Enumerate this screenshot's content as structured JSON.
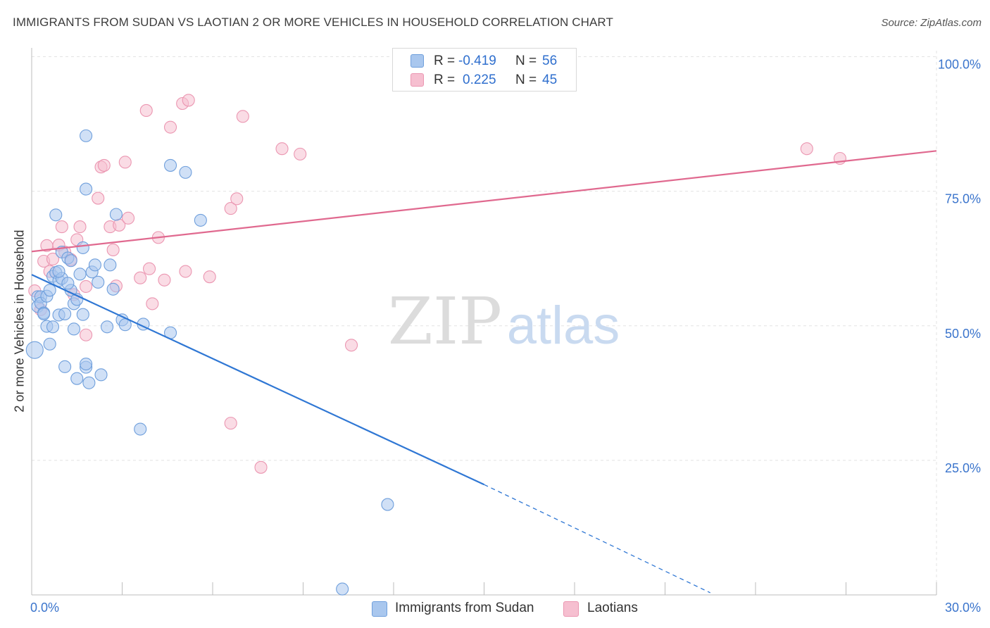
{
  "header": {
    "title": "IMMIGRANTS FROM SUDAN VS LAOTIAN 2 OR MORE VEHICLES IN HOUSEHOLD CORRELATION CHART",
    "source": "Source: ZipAtlas.com"
  },
  "watermark": {
    "zip": "ZIP",
    "atlas": "atlas"
  },
  "legend": {
    "r_label": "R =",
    "n_label": "N =",
    "series1": {
      "r": "-0.419",
      "n": "56"
    },
    "series2": {
      "r": "0.225",
      "n": "45"
    }
  },
  "colors": {
    "blue_fill": "#a9c7ee",
    "blue_stroke": "#6f9fdc",
    "blue_line": "#2f77d4",
    "pink_fill": "#f6bfd0",
    "pink_stroke": "#eb96b1",
    "pink_line": "#e0698f",
    "tick_label": "#3a74cc",
    "grid": "#e3e3e3"
  },
  "chart_data": {
    "type": "scatter",
    "title": "IMMIGRANTS FROM SUDAN VS LAOTIAN 2 OR MORE VEHICLES IN HOUSEHOLD CORRELATION CHART",
    "xlabel": "",
    "ylabel": "2 or more Vehicles in Household",
    "xlim": [
      0,
      30
    ],
    "ylim": [
      0,
      100
    ],
    "x_tick_labels": [
      "0.0%",
      "30.0%"
    ],
    "y_ticks": [
      25,
      50,
      75,
      100
    ],
    "y_tick_labels": [
      "25.0%",
      "50.0%",
      "75.0%",
      "100.0%"
    ],
    "grid": true,
    "legend_position": "top-center",
    "series": [
      {
        "name": "Immigrants from Sudan",
        "color": "blue",
        "r": -0.419,
        "n": 56,
        "trend": {
          "x0": 0.0,
          "y0": 59.5,
          "x1": 15.0,
          "y1": 20.5,
          "dashed_to_x": 22.5,
          "dashed_to_y": 0.4
        },
        "points": [
          [
            0.1,
            45.5
          ],
          [
            0.2,
            55.4
          ],
          [
            0.2,
            53.6
          ],
          [
            0.3,
            55.4
          ],
          [
            0.3,
            54.2
          ],
          [
            0.4,
            52.4
          ],
          [
            0.4,
            52.2
          ],
          [
            0.5,
            49.9
          ],
          [
            0.5,
            55.5
          ],
          [
            0.6,
            46.6
          ],
          [
            0.6,
            56.6
          ],
          [
            0.7,
            59.2
          ],
          [
            0.7,
            49.8
          ],
          [
            0.8,
            59.9
          ],
          [
            0.8,
            70.6
          ],
          [
            0.9,
            58.4
          ],
          [
            0.9,
            52.0
          ],
          [
            1.0,
            58.8
          ],
          [
            1.0,
            63.7
          ],
          [
            1.1,
            42.4
          ],
          [
            1.1,
            52.2
          ],
          [
            1.2,
            62.6
          ],
          [
            1.3,
            62.1
          ],
          [
            1.3,
            56.6
          ],
          [
            1.4,
            49.4
          ],
          [
            1.4,
            54.1
          ],
          [
            1.5,
            40.2
          ],
          [
            1.5,
            54.9
          ],
          [
            1.6,
            59.6
          ],
          [
            1.7,
            52.1
          ],
          [
            1.7,
            64.5
          ],
          [
            1.8,
            42.3
          ],
          [
            1.8,
            42.9
          ],
          [
            1.8,
            75.4
          ],
          [
            1.9,
            39.4
          ],
          [
            2.0,
            60.0
          ],
          [
            2.1,
            61.3
          ],
          [
            2.2,
            58.1
          ],
          [
            2.3,
            40.9
          ],
          [
            2.6,
            61.3
          ],
          [
            2.7,
            56.8
          ],
          [
            2.8,
            70.7
          ],
          [
            3.0,
            51.1
          ],
          [
            3.1,
            50.2
          ],
          [
            3.6,
            30.8
          ],
          [
            3.7,
            50.3
          ],
          [
            4.6,
            48.7
          ],
          [
            4.6,
            79.8
          ],
          [
            5.1,
            78.5
          ],
          [
            5.6,
            69.6
          ],
          [
            1.8,
            85.3
          ],
          [
            2.5,
            49.8
          ],
          [
            1.2,
            57.9
          ],
          [
            0.9,
            60.1
          ],
          [
            11.8,
            16.8
          ],
          [
            10.3,
            1.1
          ]
        ]
      },
      {
        "name": "Laotians",
        "color": "pink",
        "r": 0.225,
        "n": 45,
        "trend": {
          "x0": 0.0,
          "y0": 63.8,
          "x1": 30.0,
          "y1": 82.5
        },
        "points": [
          [
            0.1,
            56.5
          ],
          [
            0.3,
            53.0
          ],
          [
            0.4,
            62.0
          ],
          [
            0.5,
            64.9
          ],
          [
            0.6,
            60.1
          ],
          [
            0.7,
            62.4
          ],
          [
            0.9,
            65.0
          ],
          [
            1.0,
            68.4
          ],
          [
            1.1,
            63.7
          ],
          [
            1.3,
            62.3
          ],
          [
            1.4,
            55.8
          ],
          [
            1.5,
            66.0
          ],
          [
            1.6,
            68.4
          ],
          [
            1.8,
            57.3
          ],
          [
            1.8,
            48.3
          ],
          [
            2.2,
            73.7
          ],
          [
            2.3,
            79.5
          ],
          [
            2.4,
            79.8
          ],
          [
            2.6,
            68.4
          ],
          [
            2.7,
            64.1
          ],
          [
            2.8,
            57.4
          ],
          [
            2.9,
            68.7
          ],
          [
            3.1,
            80.4
          ],
          [
            3.2,
            70.0
          ],
          [
            3.6,
            58.9
          ],
          [
            3.8,
            90.0
          ],
          [
            3.9,
            60.6
          ],
          [
            4.0,
            54.1
          ],
          [
            4.2,
            66.4
          ],
          [
            4.4,
            58.5
          ],
          [
            4.6,
            86.9
          ],
          [
            5.0,
            91.3
          ],
          [
            5.1,
            60.1
          ],
          [
            5.2,
            91.9
          ],
          [
            5.9,
            59.1
          ],
          [
            6.6,
            71.8
          ],
          [
            6.8,
            73.6
          ],
          [
            7.0,
            88.9
          ],
          [
            6.6,
            31.9
          ],
          [
            7.6,
            23.7
          ],
          [
            8.3,
            82.9
          ],
          [
            8.9,
            81.9
          ],
          [
            10.6,
            46.4
          ],
          [
            25.7,
            82.9
          ],
          [
            26.8,
            81.1
          ]
        ]
      }
    ]
  },
  "bottom_legend": {
    "item1": "Immigrants from Sudan",
    "item2": "Laotians"
  }
}
